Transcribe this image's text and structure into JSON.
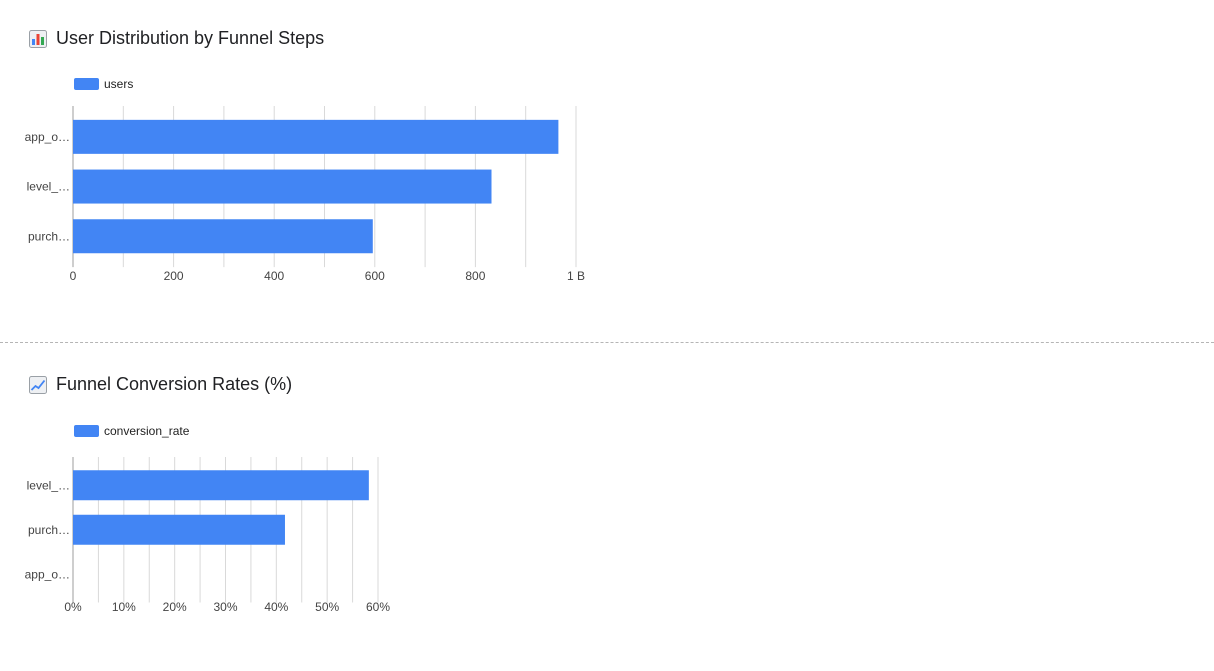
{
  "charts": [
    {
      "title": "User Distribution by Funnel Steps",
      "title_icon": "bar-chart-icon",
      "legend_label": "users",
      "bar_color": "#4285f4"
    },
    {
      "title": "Funnel Conversion Rates (%)",
      "title_icon": "line-chart-icon",
      "legend_label": "conversion_rate",
      "bar_color": "#4285f4"
    }
  ],
  "chart_data": [
    {
      "type": "bar",
      "orientation": "horizontal",
      "title": "User Distribution by Funnel Steps",
      "categories": [
        "app_o…",
        "level_…",
        "purch…"
      ],
      "series": [
        {
          "name": "users",
          "values": [
            965,
            832,
            596
          ]
        }
      ],
      "xlim": [
        0,
        1000
      ],
      "x_ticks": [
        "0",
        "200",
        "400",
        "600",
        "800",
        "1 B"
      ],
      "grid": true,
      "legend": "top-left"
    },
    {
      "type": "bar",
      "orientation": "horizontal",
      "title": "Funnel Conversion Rates (%)",
      "categories": [
        "level_…",
        "purch…",
        "app_o…"
      ],
      "series": [
        {
          "name": "conversion_rate",
          "values": [
            58.2,
            41.7,
            0
          ]
        }
      ],
      "xlim": [
        0,
        60
      ],
      "x_ticks": [
        "0%",
        "10%",
        "20%",
        "30%",
        "40%",
        "50%",
        "60%"
      ],
      "grid": true,
      "legend": "top-left"
    }
  ]
}
